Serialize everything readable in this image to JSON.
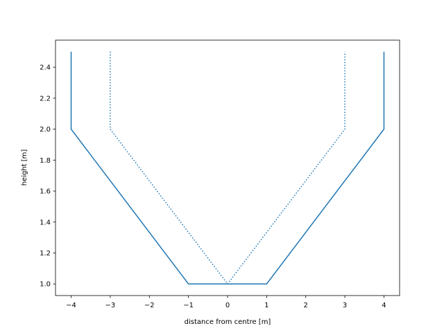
{
  "chart_data": {
    "type": "line",
    "xlabel": "distance from centre [m]",
    "ylabel": "height [m]",
    "series": [
      {
        "color": "#1f77b4",
        "linestyle": "solid",
        "x": [
          -4,
          -4,
          -1,
          1,
          4,
          4
        ],
        "values": [
          2.5,
          2.0,
          1.0,
          1.0,
          2.0,
          2.5
        ]
      },
      {
        "color": "#1f77b4",
        "linestyle": "dotted",
        "x": [
          -3,
          -3,
          0,
          3,
          3
        ],
        "values": [
          2.5,
          2.0,
          1.0,
          2.0,
          2.5
        ]
      }
    ],
    "xlim": [
      -4.4,
      4.4
    ],
    "xticks": [
      {
        "value": -4,
        "label": "−4"
      },
      {
        "value": -3,
        "label": "−3"
      },
      {
        "value": -2,
        "label": "−2"
      },
      {
        "value": -1,
        "label": "−1"
      },
      0,
      1,
      2,
      3,
      4
    ],
    "ylim": [
      0.925,
      2.575
    ],
    "yticks": [
      {
        "value": 1.0,
        "label": "1.0"
      },
      {
        "value": 1.2,
        "label": "1.2"
      },
      {
        "value": 1.4,
        "label": "1.4"
      },
      {
        "value": 1.6,
        "label": "1.6"
      },
      {
        "value": 1.8,
        "label": "1.8"
      },
      {
        "value": 2.0,
        "label": "2.0"
      },
      {
        "value": 2.2,
        "label": "2.2"
      },
      {
        "value": 2.4,
        "label": "2.4"
      }
    ],
    "grid": false
  }
}
